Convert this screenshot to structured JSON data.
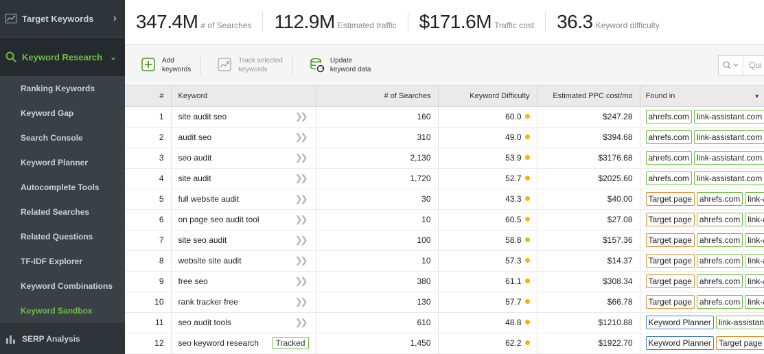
{
  "sidebar": {
    "top_item": "Target Keywords",
    "section": "Keyword Research",
    "items": [
      {
        "label": "Ranking Keywords",
        "active": false
      },
      {
        "label": "Keyword Gap",
        "active": false
      },
      {
        "label": "Search Console",
        "active": false
      },
      {
        "label": "Keyword Planner",
        "active": false
      },
      {
        "label": "Autocomplete Tools",
        "active": false
      },
      {
        "label": "Related Searches",
        "active": false
      },
      {
        "label": "Related Questions",
        "active": false
      },
      {
        "label": "TF-IDF Explorer",
        "active": false
      },
      {
        "label": "Keyword Combinations",
        "active": false
      },
      {
        "label": "Keyword Sandbox",
        "active": true
      }
    ],
    "bottom_item": "SERP Analysis"
  },
  "metrics": [
    {
      "value": "347.4M",
      "label": "# of Searches"
    },
    {
      "value": "112.9M",
      "label": "Estimated traffic"
    },
    {
      "value": "$171.6M",
      "label": "Traffic cost"
    },
    {
      "value": "36.3",
      "label": "Keyword difficulty"
    }
  ],
  "toolbar": {
    "add_line1": "Add",
    "add_line2": "keywords",
    "track_line1": "Track selected",
    "track_line2": "keywords",
    "update_line1": "Update",
    "update_line2": "keyword data",
    "search_value": "Qui"
  },
  "table": {
    "headers": {
      "num": "#",
      "keyword": "Keyword",
      "searches": "# of Searches",
      "difficulty": "Keyword Difficulty",
      "ppc": "Estimated PPC cost/mo",
      "found": "Found in"
    },
    "rows": [
      {
        "n": "1",
        "kw": "site audit seo",
        "tracked": "",
        "searches": "160",
        "diff": "60.0",
        "ppc": "$247.28",
        "found": [
          {
            "t": "ahrefs.com",
            "c": "green"
          },
          {
            "t": "link-assistant.com",
            "c": "green"
          }
        ]
      },
      {
        "n": "2",
        "kw": "audit seo",
        "tracked": "",
        "searches": "310",
        "diff": "49.0",
        "ppc": "$394.68",
        "found": [
          {
            "t": "ahrefs.com",
            "c": "green"
          },
          {
            "t": "link-assistant.com",
            "c": "green"
          }
        ]
      },
      {
        "n": "3",
        "kw": "seo audit",
        "tracked": "",
        "searches": "2,130",
        "diff": "53.9",
        "ppc": "$3176.68",
        "found": [
          {
            "t": "ahrefs.com",
            "c": "green"
          },
          {
            "t": "link-assistant.com",
            "c": "green"
          }
        ]
      },
      {
        "n": "4",
        "kw": "site audit",
        "tracked": "",
        "searches": "1,720",
        "diff": "52.7",
        "ppc": "$2025.60",
        "found": [
          {
            "t": "ahrefs.com",
            "c": "green"
          },
          {
            "t": "link-assistant.com",
            "c": "green"
          }
        ]
      },
      {
        "n": "5",
        "kw": "full website audit",
        "tracked": "",
        "searches": "30",
        "diff": "43.3",
        "ppc": "$40.00",
        "found": [
          {
            "t": "Target page",
            "c": "orange"
          },
          {
            "t": "ahrefs.com",
            "c": "green"
          },
          {
            "t": "link-assistant.com",
            "c": "green"
          }
        ]
      },
      {
        "n": "6",
        "kw": "on page seo audit tool",
        "tracked": "",
        "searches": "10",
        "diff": "60.5",
        "ppc": "$27.08",
        "found": [
          {
            "t": "Target page",
            "c": "orange"
          },
          {
            "t": "ahrefs.com",
            "c": "green"
          },
          {
            "t": "link-assistant.com",
            "c": "green"
          }
        ]
      },
      {
        "n": "7",
        "kw": "site seo audit",
        "tracked": "",
        "searches": "100",
        "diff": "58.8",
        "ppc": "$157.36",
        "found": [
          {
            "t": "Target page",
            "c": "orange"
          },
          {
            "t": "ahrefs.com",
            "c": "green"
          },
          {
            "t": "link-assistant.com",
            "c": "green"
          }
        ]
      },
      {
        "n": "8",
        "kw": "website site audit",
        "tracked": "",
        "searches": "10",
        "diff": "57.3",
        "ppc": "$14.37",
        "found": [
          {
            "t": "Target page",
            "c": "orange"
          },
          {
            "t": "ahrefs.com",
            "c": "green"
          },
          {
            "t": "link-assistant.com",
            "c": "green"
          }
        ]
      },
      {
        "n": "9",
        "kw": "free seo",
        "tracked": "",
        "searches": "380",
        "diff": "61.1",
        "ppc": "$308.34",
        "found": [
          {
            "t": "Target page",
            "c": "orange"
          },
          {
            "t": "ahrefs.com",
            "c": "green"
          },
          {
            "t": "link-assistant.com",
            "c": "green"
          }
        ]
      },
      {
        "n": "10",
        "kw": "rank tracker free",
        "tracked": "",
        "searches": "130",
        "diff": "57.7",
        "ppc": "$66.78",
        "found": [
          {
            "t": "Target page",
            "c": "orange"
          },
          {
            "t": "ahrefs.com",
            "c": "green"
          },
          {
            "t": "link-assistant.com",
            "c": "green"
          }
        ]
      },
      {
        "n": "11",
        "kw": "seo audit tools",
        "tracked": "",
        "searches": "610",
        "diff": "48.8",
        "ppc": "$1210.88",
        "found": [
          {
            "t": "Keyword Planner",
            "c": "blue"
          },
          {
            "t": "link-assistant.com",
            "c": "green"
          }
        ]
      },
      {
        "n": "12",
        "kw": "seo keyword research",
        "tracked": "Tracked",
        "searches": "1,450",
        "diff": "62.2",
        "ppc": "$1922.70",
        "found": [
          {
            "t": "Keyword Planner",
            "c": "blue"
          },
          {
            "t": "Target page",
            "c": "orange"
          }
        ]
      }
    ]
  },
  "colors": {
    "accent": "#6cbf3a",
    "difficulty_dot": "#f2b705",
    "tag_green": "#6cbf3a",
    "tag_orange": "#e8912d",
    "tag_blue": "#4a7fc1"
  }
}
